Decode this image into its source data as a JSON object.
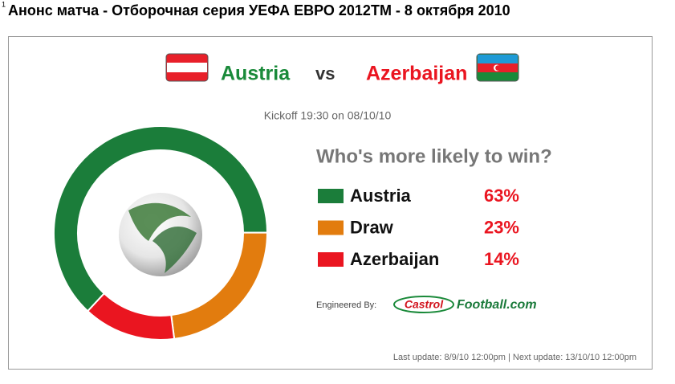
{
  "footnote_mark": "1",
  "page_title": "Анонс матча - Отборочная серия УЕФА ЕВРО 2012TM - 8 октября 2010",
  "match": {
    "home": "Austria",
    "vs": "vs",
    "away": "Azerbaijan",
    "kickoff": "Kickoff 19:30 on 08/10/10"
  },
  "chart_data": {
    "type": "pie",
    "title": "Who's more likely to win?",
    "categories": [
      "Austria",
      "Draw",
      "Azerbaijan"
    ],
    "values": [
      63,
      23,
      14
    ],
    "value_labels": [
      "63%",
      "23%",
      "14%"
    ],
    "colors": [
      "#1b7d3a",
      "#e27c0e",
      "#ea1520"
    ]
  },
  "credits": {
    "engineered": "Engineered By:",
    "brand": "Castrol",
    "site": "Football.com"
  },
  "footer": "Last update: 8/9/10 12:00pm | Next update: 13/10/10 12:00pm"
}
